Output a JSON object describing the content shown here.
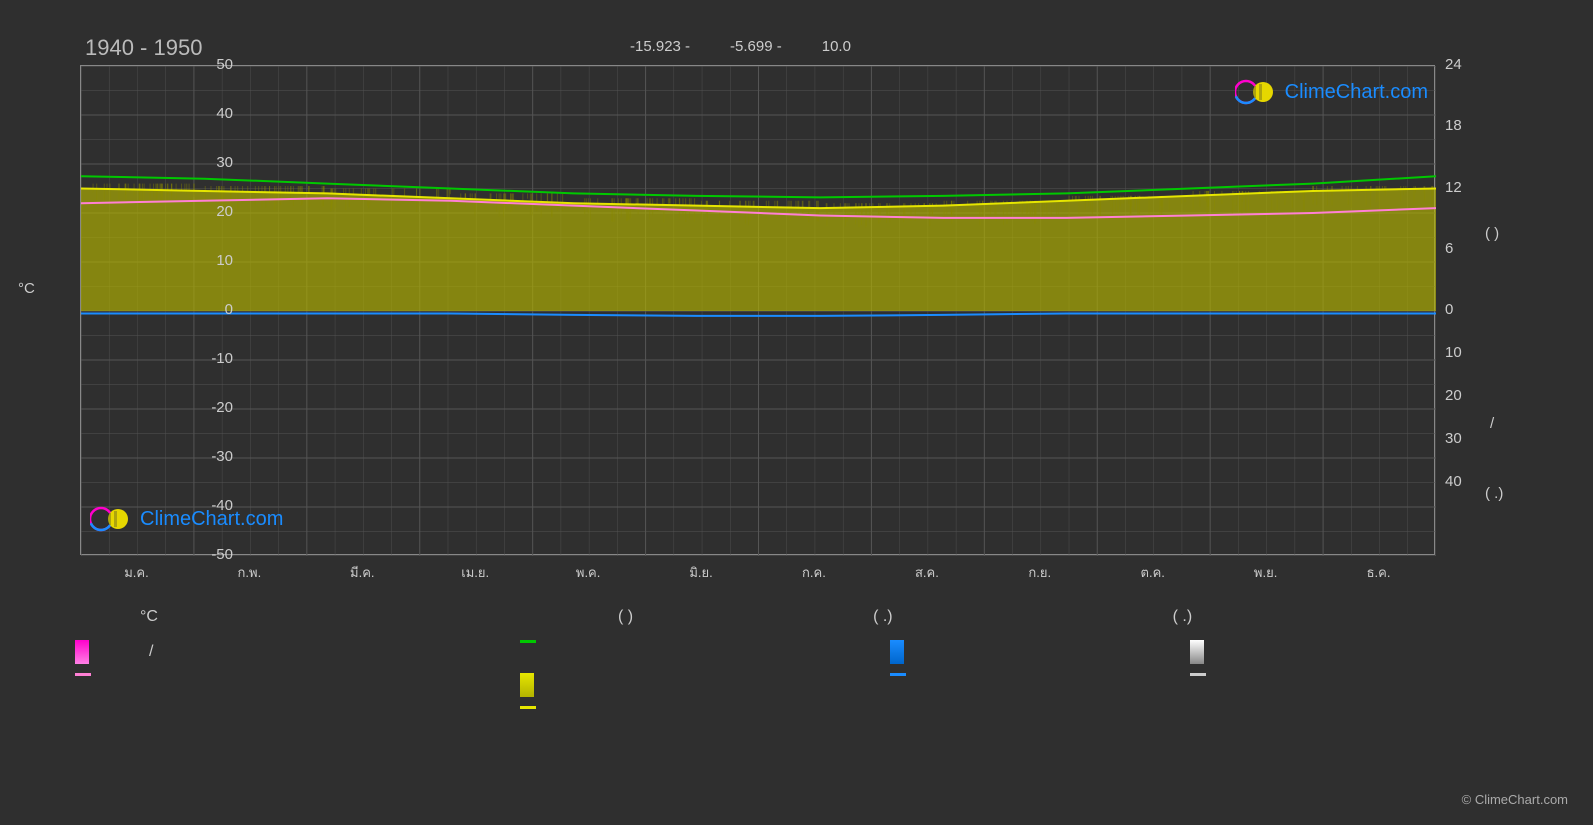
{
  "chart": {
    "title": "1940 - 1950",
    "header_values": [
      "-15.923 -",
      "-5.699 -",
      "10.0"
    ],
    "left_axis": {
      "label": "°C",
      "ticks": [
        50,
        40,
        30,
        20,
        10,
        0,
        -10,
        -20,
        -30,
        -40,
        -50
      ],
      "min": -50,
      "max": 50
    },
    "right_axis": {
      "ticks_top": [
        24,
        18,
        12,
        6,
        0
      ],
      "ticks_bottom": [
        10,
        20,
        30,
        40
      ],
      "labels": [
        "(           )",
        "/",
        "(   .)"
      ]
    },
    "x_ticks": [
      "ม.ค.",
      "ก.พ.",
      "มี.ค.",
      "เม.ย.",
      "พ.ค.",
      "มิ.ย.",
      "ก.ค.",
      "ส.ค.",
      "ก.ย.",
      "ต.ค.",
      "พ.ย.",
      "ธ.ค."
    ],
    "series": {
      "green_line": {
        "color": "#00c800",
        "values": [
          27.5,
          27,
          26,
          25,
          24,
          23.5,
          23.2,
          23.5,
          24,
          25,
          26,
          27.5
        ],
        "width": 2
      },
      "yellow_line": {
        "color": "#e6e600",
        "values": [
          25,
          24.5,
          24,
          23,
          22,
          21.5,
          21,
          21.5,
          22.5,
          23.5,
          24.5,
          25
        ],
        "width": 2
      },
      "pink_line": {
        "color": "#ff80d4",
        "values": [
          22,
          22.5,
          23,
          22.5,
          21.5,
          20.5,
          19.5,
          19,
          19,
          19.5,
          20,
          21
        ],
        "width": 2
      },
      "blue_line": {
        "color": "#1a8cff",
        "values": [
          -0.5,
          -0.5,
          -0.5,
          -0.5,
          -0.8,
          -1,
          -1,
          -0.8,
          -0.5,
          -0.5,
          -0.5,
          -0.5
        ],
        "width": 2
      },
      "yellow_fill": {
        "color": "#b3b300",
        "opacity": 0.65,
        "top_values": [
          25,
          24.5,
          24,
          23,
          22,
          21.5,
          21,
          21.5,
          22.5,
          23.5,
          24.5,
          25
        ],
        "bottom": 0
      }
    },
    "background": "#2f2f2f",
    "grid_color": "#555555",
    "plot_border": "#888888"
  },
  "legend": {
    "row1": [
      "°C",
      "(           )",
      "(   .)",
      "(   .)"
    ],
    "row2": [
      {
        "type": "box",
        "color1": "#ff00cc",
        "color2": "#ff80e5",
        "label1": " / ",
        "label2": ""
      },
      {
        "type": "line",
        "color": "#ff80d4",
        "label": ""
      },
      {
        "type": "line",
        "color": "#00c800",
        "label": ""
      },
      {
        "type": "box",
        "color1": "#e6e600",
        "color2": "#b3b300",
        "label": ""
      },
      {
        "type": "line",
        "color": "#e6e600",
        "label": ""
      },
      {
        "type": "box",
        "color1": "#1a8cff",
        "color2": "#0066cc",
        "label": ""
      },
      {
        "type": "line",
        "color": "#1a8cff",
        "label": ""
      },
      {
        "type": "box",
        "color1": "#ffffff",
        "color2": "#888888",
        "label": ""
      },
      {
        "type": "line",
        "color": "#cccccc",
        "label": ""
      }
    ]
  },
  "watermark": "ClimeChart.com",
  "footer": "© ClimeChart.com"
}
